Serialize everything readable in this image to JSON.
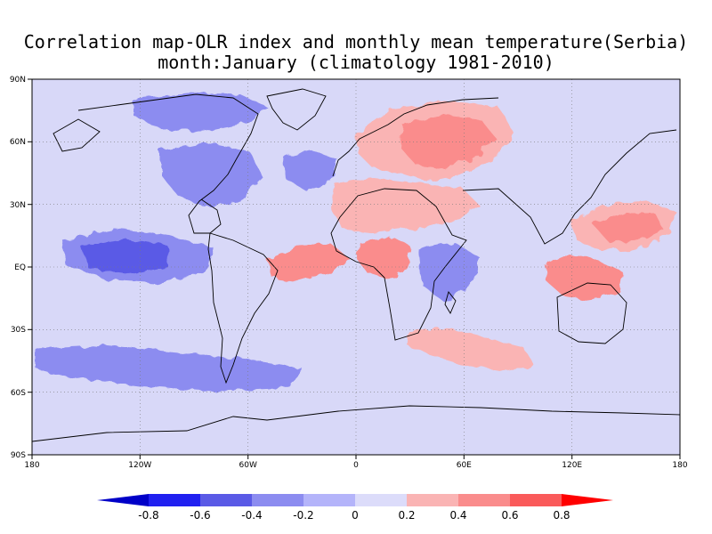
{
  "title": {
    "line1": "Correlation map-OLR index and monthly mean temperature(Serbia)",
    "line2": "month:January (climatology 1981-2010)"
  },
  "map": {
    "lon_range": [
      -180,
      180
    ],
    "lat_range": [
      -90,
      90
    ],
    "background_color": "#d8d8f8",
    "lat_ticks": [
      "90N",
      "60N",
      "30N",
      "EQ",
      "30S",
      "60S",
      "90S"
    ],
    "lon_ticks": [
      "180",
      "120W",
      "60W",
      "0",
      "60E",
      "120E",
      "180"
    ],
    "gridlines": "dotted"
  },
  "colorbar": {
    "labels": [
      "-0.8",
      "-0.6",
      "-0.4",
      "-0.2",
      "0",
      "0.2",
      "0.4",
      "0.6",
      "0.8"
    ],
    "colors": [
      "#0000c8",
      "#2020f0",
      "#5a5ae6",
      "#8c8cf0",
      "#b4b4fa",
      "#dcdcfa",
      "#fab4b4",
      "#fa8c8c",
      "#fa5a5a",
      "#ff2020",
      "#ff0000"
    ]
  },
  "regions": [
    {
      "name": "europe-russia-positive",
      "color": "#fab4b4"
    },
    {
      "name": "eastern-europe-core",
      "color": "#fa8c8c"
    },
    {
      "name": "north-africa-arabia-positive",
      "color": "#fab4b4"
    },
    {
      "name": "central-africa-positive",
      "color": "#fa8c8c"
    },
    {
      "name": "tropical-atlantic-positive",
      "color": "#fa8c8c"
    },
    {
      "name": "north-pacific-positive",
      "color": "#fab4b4"
    },
    {
      "name": "west-pacific-core",
      "color": "#fa8c8c"
    },
    {
      "name": "indonesia-positive",
      "color": "#fa8c8c"
    },
    {
      "name": "south-indian-ocean-positive",
      "color": "#fab4b4"
    },
    {
      "name": "arctic-canada-negative",
      "color": "#8c8cf0"
    },
    {
      "name": "north-america-negative",
      "color": "#8c8cf0"
    },
    {
      "name": "north-atlantic-negative",
      "color": "#8c8cf0"
    },
    {
      "name": "east-pacific-negative",
      "color": "#8c8cf0"
    },
    {
      "name": "east-pacific-core-negative",
      "color": "#5a5ae6"
    },
    {
      "name": "indian-ocean-negative",
      "color": "#8c8cf0"
    },
    {
      "name": "southern-ocean-negative",
      "color": "#8c8cf0"
    }
  ]
}
